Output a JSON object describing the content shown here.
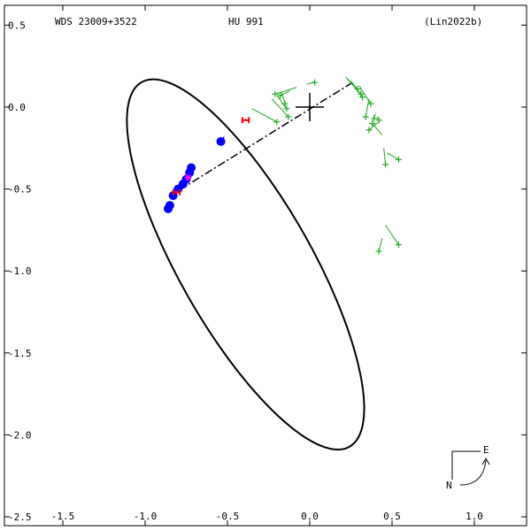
{
  "chart_data": {
    "type": "scatter",
    "header": {
      "left": "WDS 23009+3522",
      "center": "HU  991",
      "right": "(Lin2022b)"
    },
    "xlim": [
      -1.5,
      1.3
    ],
    "ylim": [
      -2.5,
      0.5
    ],
    "x_ticks": [
      {
        "value": -1.5,
        "label": "-1.5"
      },
      {
        "value": -1.0,
        "label": "-1.0"
      },
      {
        "value": -0.5,
        "label": "-0.5"
      },
      {
        "value": 0.0,
        "label": "0.0"
      },
      {
        "value": 0.5,
        "label": "0.5"
      },
      {
        "value": 1.0,
        "label": "1.0"
      }
    ],
    "y_ticks": [
      {
        "value": 0.5,
        "label": "0.5"
      },
      {
        "value": 0.0,
        "label": "0.0"
      },
      {
        "value": -0.5,
        "label": "-0.5"
      },
      {
        "value": -1.0,
        "label": "-1.0"
      },
      {
        "value": -1.5,
        "label": "-1.5"
      },
      {
        "value": -2.0,
        "label": "-2.0"
      },
      {
        "value": -2.5,
        "label": "-2.5"
      }
    ],
    "grid": false,
    "orbit_ellipse": {
      "center": [
        -0.39,
        -0.96
      ],
      "semi_axes": [
        0.4,
        1.28
      ],
      "rotation_deg": -29.7,
      "color": "#000000"
    },
    "line_of_nodes": {
      "from": [
        0.26,
        0.15
      ],
      "to": [
        -0.83,
        -0.53
      ]
    },
    "primary_star": {
      "x": 0.0,
      "y": 0.0
    },
    "series": [
      {
        "marker": "plus",
        "color": "#22aa22",
        "points": [
          {
            "obs": [
              0.03,
              0.15
            ],
            "orbit": [
              -0.02,
              0.14
            ]
          },
          {
            "obs": [
              -0.21,
              0.08
            ],
            "orbit": [
              -0.08,
              0.12
            ]
          },
          {
            "obs": [
              -0.18,
              0.07
            ],
            "orbit": [
              -0.12,
              0.1
            ]
          },
          {
            "obs": [
              -0.15,
              0.02
            ],
            "orbit": [
              -0.17,
              0.09
            ]
          },
          {
            "obs": [
              -0.14,
              -0.01
            ],
            "orbit": [
              -0.2,
              0.07
            ]
          },
          {
            "obs": [
              -0.13,
              -0.06
            ],
            "orbit": [
              -0.23,
              0.05
            ]
          },
          {
            "obs": [
              -0.2,
              -0.09
            ],
            "orbit": [
              -0.35,
              -0.01
            ]
          },
          {
            "obs": [
              0.29,
              0.11
            ],
            "orbit": [
              0.22,
              0.18
            ]
          },
          {
            "obs": [
              0.31,
              0.08
            ],
            "orbit": [
              0.23,
              0.17
            ]
          },
          {
            "obs": [
              0.32,
              0.06
            ],
            "orbit": [
              0.25,
              0.16
            ]
          },
          {
            "obs": [
              0.37,
              0.02
            ],
            "orbit": [
              0.3,
              0.13
            ]
          },
          {
            "obs": [
              0.34,
              -0.06
            ],
            "orbit": [
              0.36,
              0.05
            ]
          },
          {
            "obs": [
              0.39,
              -0.07
            ],
            "orbit": [
              0.4,
              -0.04
            ]
          },
          {
            "obs": [
              0.42,
              -0.08
            ],
            "orbit": [
              0.41,
              -0.06
            ]
          },
          {
            "obs": [
              0.36,
              -0.14
            ],
            "orbit": [
              0.42,
              -0.09
            ]
          },
          {
            "obs": [
              0.38,
              -0.1
            ],
            "orbit": [
              0.44,
              -0.17
            ]
          },
          {
            "obs": [
              0.46,
              -0.35
            ],
            "orbit": [
              0.45,
              -0.25
            ]
          },
          {
            "obs": [
              0.54,
              -0.32
            ],
            "orbit": [
              0.47,
              -0.28
            ]
          },
          {
            "obs": [
              0.54,
              -0.84
            ],
            "orbit": [
              0.46,
              -0.72
            ]
          },
          {
            "obs": [
              0.42,
              -0.88
            ],
            "orbit": [
              0.44,
              -0.8
            ]
          }
        ]
      },
      {
        "marker": "dot",
        "color": "#0000ff",
        "points": [
          {
            "obs": [
              -0.54,
              -0.21
            ],
            "orbit": [
              -0.52,
              -0.18
            ]
          },
          {
            "obs": [
              -0.72,
              -0.37
            ],
            "orbit": [
              -0.71,
              -0.36
            ]
          },
          {
            "obs": [
              -0.73,
              -0.4
            ],
            "orbit": [
              -0.73,
              -0.39
            ]
          },
          {
            "obs": [
              -0.75,
              -0.44
            ],
            "orbit": [
              -0.75,
              -0.43
            ]
          },
          {
            "obs": [
              -0.77,
              -0.47
            ],
            "orbit": [
              -0.77,
              -0.46
            ]
          },
          {
            "obs": [
              -0.8,
              -0.5
            ],
            "orbit": [
              -0.8,
              -0.5
            ]
          },
          {
            "obs": [
              -0.83,
              -0.54
            ],
            "orbit": [
              -0.83,
              -0.54
            ]
          },
          {
            "obs": [
              -0.85,
              -0.6
            ],
            "orbit": [
              -0.86,
              -0.59
            ]
          },
          {
            "obs": [
              -0.86,
              -0.62
            ],
            "orbit": [
              -0.86,
              -0.61
            ]
          }
        ]
      },
      {
        "marker": "star",
        "color": "#ff00ff",
        "points": [
          {
            "obs": [
              -0.74,
              -0.43
            ],
            "orbit": [
              -0.74,
              -0.42
            ]
          }
        ]
      },
      {
        "marker": "errorbar",
        "color": "#ff0000",
        "points": [
          {
            "obs": [
              -0.39,
              -0.08
            ],
            "orbit": [
              -0.39,
              -0.07
            ],
            "err": 0.02
          },
          {
            "obs": [
              -0.81,
              -0.52
            ],
            "orbit": [
              -0.81,
              -0.52
            ],
            "err": 0.02
          }
        ]
      }
    ],
    "compass": {
      "east": "E",
      "north": "N"
    }
  }
}
